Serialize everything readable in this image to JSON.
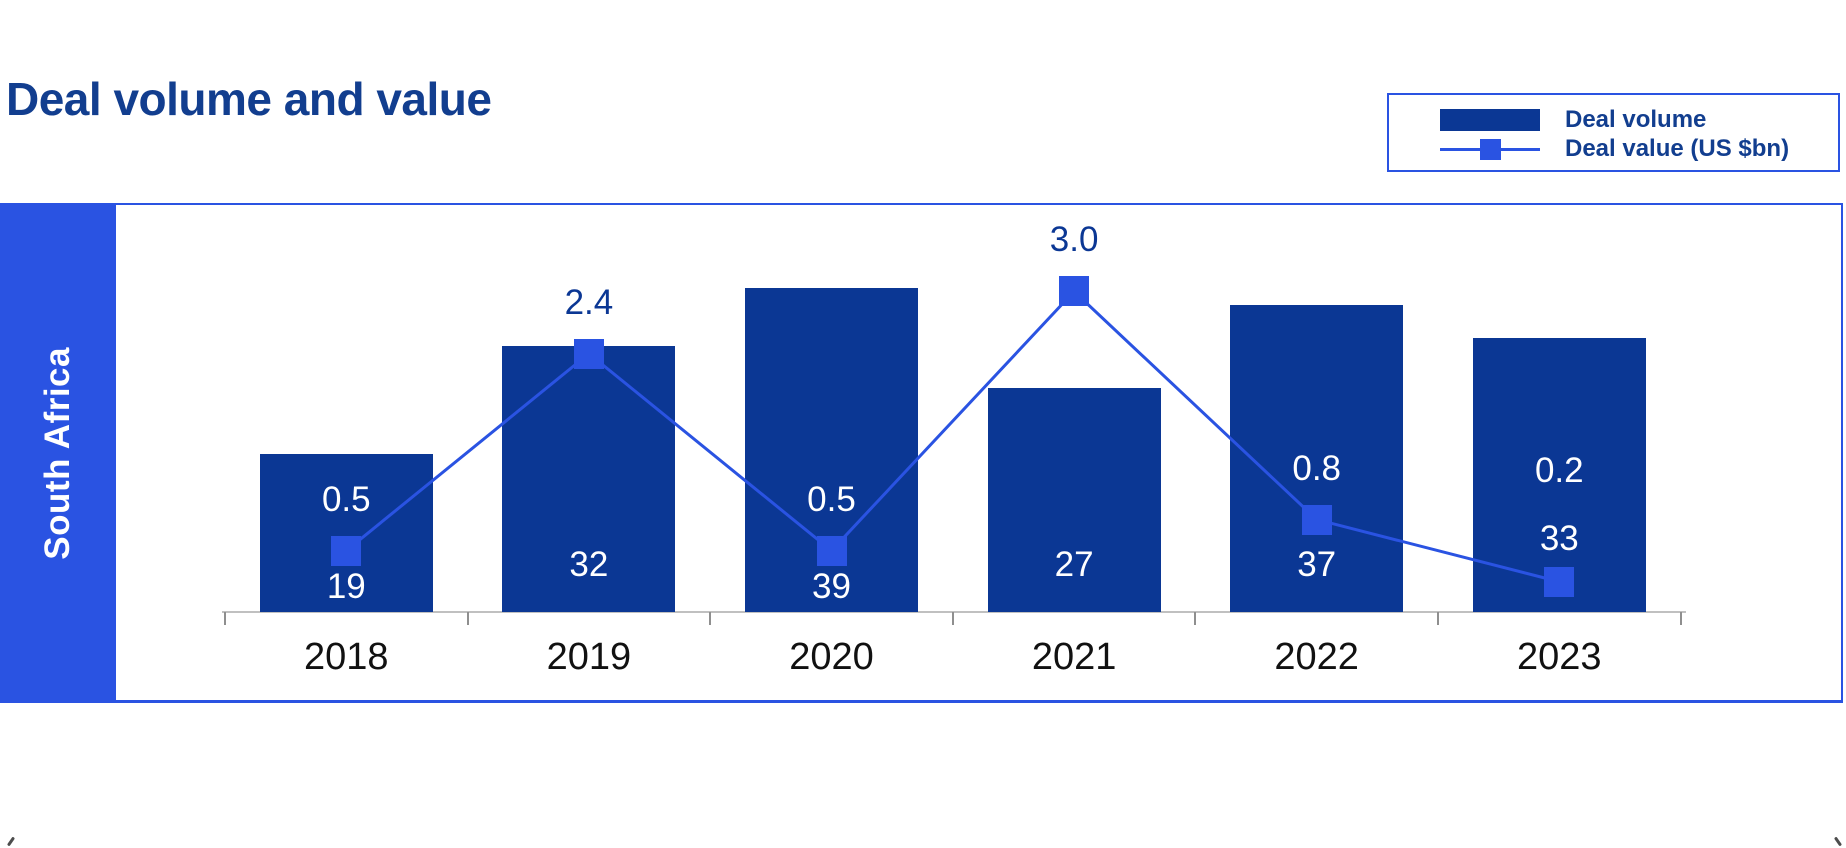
{
  "title": "Deal volume and value",
  "region_label": "South Africa",
  "legend": {
    "position": "top-right",
    "items": [
      {
        "label": "Deal volume",
        "swatch": "bar"
      },
      {
        "label": "Deal value (US $bn)",
        "swatch": "line-with-square-marker"
      }
    ]
  },
  "colors": {
    "bar_navy": "#0b3794",
    "accent_blue": "#2a53e2",
    "title_navy": "#123e8f",
    "axis_gray": "#c0c0c0",
    "tick_gray": "#8f8f8f",
    "year_text": "#111111",
    "label_on_bar": "#ffffff"
  },
  "chart_data": {
    "type": "combo-bar-line",
    "title": "Deal volume and value",
    "region": "South Africa",
    "categories": [
      "2018",
      "2019",
      "2020",
      "2021",
      "2022",
      "2023"
    ],
    "series": [
      {
        "name": "Deal volume",
        "kind": "bar",
        "values": [
          19,
          32,
          39,
          27,
          37,
          33
        ]
      },
      {
        "name": "Deal value (US $bn)",
        "kind": "line",
        "values": [
          0.5,
          2.4,
          0.5,
          3.0,
          0.8,
          0.2
        ]
      }
    ],
    "data_labels_shown": true,
    "value_label_decimals": 1,
    "grid": false,
    "y_axes_shown": false,
    "legend_position": "top-right"
  }
}
